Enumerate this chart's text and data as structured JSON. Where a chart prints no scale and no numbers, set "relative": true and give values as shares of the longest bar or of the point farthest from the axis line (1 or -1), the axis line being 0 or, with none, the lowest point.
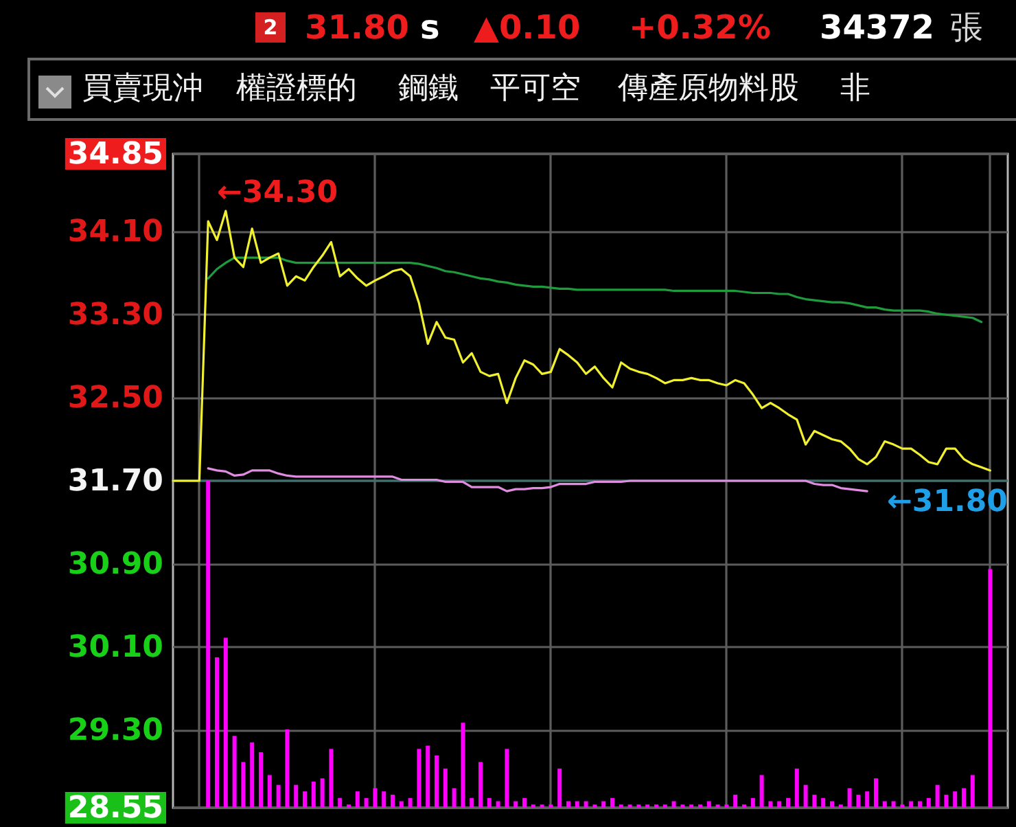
{
  "chart_data": [
    {
      "type": "line",
      "annotations": [
        "2",
        "31.80",
        "s",
        "▲0.10",
        "+0.32%",
        "34372",
        "張",
        "買賣現沖",
        "權證標的",
        "鋼鐵",
        "平可空",
        "傳產原物料股",
        "非",
        "←34.30",
        "←31.80"
      ],
      "categories": [
        null,
        null,
        null,
        null,
        null,
        null,
        null,
        null,
        null,
        null,
        null,
        null,
        null,
        null,
        null,
        null,
        null,
        null,
        null,
        null,
        null,
        null,
        null,
        null,
        null,
        null,
        null,
        null,
        null,
        null,
        null,
        null,
        null,
        null,
        null,
        null,
        null,
        null,
        null,
        null,
        null,
        null,
        null,
        null,
        null,
        null,
        null,
        null,
        null,
        null,
        null,
        null,
        null,
        null,
        null,
        null,
        null,
        null,
        null,
        null,
        null,
        null,
        null,
        null,
        null,
        null,
        null,
        null,
        null,
        null,
        null,
        null,
        null,
        null,
        null,
        null,
        null,
        null,
        null,
        null,
        null,
        null,
        null,
        null,
        null,
        null,
        null,
        null,
        null,
        null,
        null,
        null,
        null,
        null,
        null,
        null
      ],
      "series": [
        {
          "color": "#f0f030",
          "values": [
            31.7,
            31.7,
            31.7,
            31.7,
            34.2,
            34.02,
            34.3,
            33.85,
            33.76,
            34.13,
            33.8,
            33.85,
            33.89,
            33.58,
            33.67,
            33.63,
            33.76,
            33.87,
            34,
            33.67,
            33.74,
            33.65,
            33.58,
            33.63,
            33.67,
            33.72,
            33.74,
            33.67,
            33.41,
            33.02,
            33.23,
            33.08,
            33.06,
            32.84,
            32.93,
            32.75,
            32.71,
            32.73,
            32.45,
            32.69,
            32.86,
            32.82,
            32.73,
            32.75,
            32.97,
            32.91,
            32.84,
            32.73,
            32.8,
            32.69,
            32.6,
            32.84,
            32.78,
            32.75,
            32.73,
            32.69,
            32.64,
            32.67,
            32.67,
            32.69,
            32.67,
            32.67,
            32.64,
            32.62,
            32.67,
            32.64,
            32.53,
            32.4,
            32.45,
            32.4,
            32.34,
            32.29,
            32.05,
            32.18,
            32.14,
            32.1,
            32.08,
            32.01,
            31.91,
            31.86,
            31.93,
            32.08,
            32.05,
            32.01,
            32.01,
            31.95,
            31.88,
            31.86,
            32.01,
            32.01,
            31.91,
            31.86,
            31.83,
            31.8,
            null,
            null
          ]
        },
        {
          "color": "#1f9a3c",
          "values": [
            null,
            null,
            null,
            null,
            33.65,
            33.74,
            33.8,
            33.85,
            33.85,
            33.85,
            33.85,
            33.85,
            33.85,
            33.82,
            33.8,
            33.8,
            33.8,
            33.8,
            33.8,
            33.8,
            33.8,
            33.8,
            33.8,
            33.8,
            33.8,
            33.8,
            33.8,
            33.8,
            33.79,
            33.77,
            33.75,
            33.72,
            33.71,
            33.69,
            33.67,
            33.65,
            33.64,
            33.62,
            33.61,
            33.59,
            33.58,
            33.57,
            33.57,
            33.56,
            33.55,
            33.55,
            33.54,
            33.54,
            33.54,
            33.54,
            33.54,
            33.54,
            33.54,
            33.54,
            33.54,
            33.54,
            33.54,
            33.53,
            33.53,
            33.53,
            33.53,
            33.53,
            33.53,
            33.53,
            33.53,
            33.52,
            33.51,
            33.51,
            33.51,
            33.5,
            33.5,
            33.47,
            33.45,
            33.44,
            33.43,
            33.42,
            33.42,
            33.41,
            33.39,
            33.37,
            33.37,
            33.35,
            33.34,
            33.34,
            33.34,
            33.34,
            33.33,
            33.31,
            33.3,
            33.29,
            33.28,
            33.27,
            33.23,
            null,
            null,
            null
          ]
        },
        {
          "color": "#e08ce0",
          "values": [
            null,
            null,
            null,
            null,
            31.82,
            31.8,
            31.79,
            31.75,
            31.76,
            31.8,
            31.8,
            31.8,
            31.77,
            31.75,
            31.74,
            31.74,
            31.74,
            31.74,
            31.74,
            31.74,
            31.74,
            31.74,
            31.74,
            31.74,
            31.74,
            31.74,
            31.71,
            31.71,
            31.71,
            31.71,
            31.71,
            31.69,
            31.69,
            31.69,
            31.64,
            31.64,
            31.64,
            31.64,
            31.6,
            31.62,
            31.62,
            31.63,
            31.63,
            31.64,
            31.67,
            31.67,
            31.67,
            31.67,
            31.69,
            31.69,
            31.69,
            31.69,
            31.7,
            31.7,
            31.7,
            31.7,
            31.7,
            31.7,
            31.7,
            31.7,
            31.7,
            31.7,
            31.7,
            31.7,
            31.7,
            31.7,
            31.7,
            31.7,
            31.7,
            31.7,
            31.7,
            31.7,
            31.7,
            31.67,
            31.66,
            31.66,
            31.63,
            31.62,
            31.61,
            31.6,
            null,
            null,
            null,
            null,
            null,
            null,
            null,
            null,
            null,
            null,
            null,
            null,
            null,
            null,
            null,
            null
          ]
        }
      ],
      "ylim": [
        28.55,
        34.85
      ],
      "yticks": [
        28.55,
        {
          "value": 29.3,
          "label": "29.30"
        },
        {
          "value": 30.1,
          "label": "30.10"
        },
        {
          "value": 30.9,
          "label": "30.90"
        },
        {
          "value": 31.7,
          "label": "31.70"
        },
        {
          "value": 32.5,
          "label": "32.50"
        },
        {
          "value": 33.3,
          "label": "33.30"
        },
        {
          "value": 34.1,
          "label": "34.10"
        },
        34.85
      ],
      "ref_lines": [
        {
          "axis": "y",
          "value": 31.7,
          "color": "#3f7070"
        }
      ],
      "grid": true,
      "tick_labels": "y"
    },
    {
      "type": "bar",
      "categories": [
        null,
        null,
        null,
        null,
        null,
        null,
        null,
        null,
        null,
        null,
        null,
        null,
        null,
        null,
        null,
        null,
        null,
        null,
        null,
        null,
        null,
        null,
        null,
        null,
        null,
        null,
        null,
        null,
        null,
        null,
        null,
        null,
        null,
        null,
        null,
        null,
        null,
        null,
        null,
        null,
        null,
        null,
        null,
        null,
        null,
        null,
        null,
        null,
        null,
        null,
        null,
        null,
        null,
        null,
        null,
        null,
        null,
        null,
        null,
        null,
        null,
        null,
        null,
        null,
        null,
        null,
        null,
        null,
        null,
        null,
        null,
        null,
        null,
        null,
        null,
        null,
        null,
        null,
        null,
        null,
        null,
        null,
        null,
        null,
        null,
        null,
        null,
        null,
        null,
        null,
        null,
        null,
        null,
        null,
        null,
        null
      ],
      "values": [
        null,
        null,
        null,
        null,
        1,
        0.46,
        0.52,
        0.22,
        0.14,
        0.2,
        0.17,
        0.1,
        0.07,
        0.24,
        0.07,
        0.05,
        0.08,
        0.09,
        0.18,
        0.03,
        0.01,
        0.05,
        0.03,
        0.06,
        0.05,
        0.04,
        0.02,
        0.03,
        0.18,
        0.19,
        0.16,
        0.12,
        0.06,
        0.26,
        0.03,
        0.14,
        0.03,
        0.02,
        0.18,
        0.02,
        0.03,
        0.01,
        0.01,
        0.01,
        0.12,
        0.02,
        0.02,
        0.02,
        0.01,
        0.02,
        0.03,
        0.01,
        0.01,
        0.01,
        0.01,
        0.01,
        0.01,
        0.02,
        0.01,
        0.01,
        0.01,
        0.02,
        0.01,
        0.01,
        0.04,
        0.01,
        0.03,
        0.1,
        0.02,
        0.02,
        0.03,
        0.12,
        0.07,
        0.04,
        0.03,
        0.02,
        0.01,
        0.06,
        0.04,
        0.05,
        0.09,
        0.02,
        0.02,
        0.01,
        0.02,
        0.02,
        0.03,
        0.07,
        0.04,
        0.05,
        0.06,
        0.1,
        0,
        0.73,
        null,
        null
      ],
      "color": "#ff00ff",
      "relative": true,
      "tick_labels": false
    }
  ]
}
